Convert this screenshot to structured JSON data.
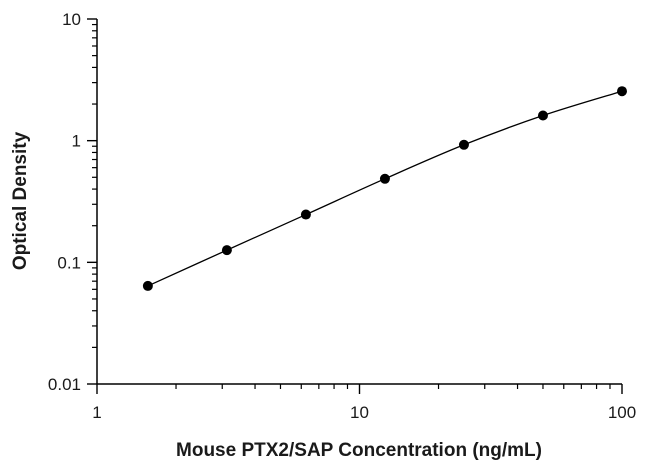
{
  "chart_data": {
    "type": "scatter",
    "xlabel": "Mouse PTX2/SAP Concentration (ng/mL)",
    "ylabel": "Optical Density",
    "x_scale": "log",
    "y_scale": "log",
    "xlim": [
      1,
      100
    ],
    "ylim": [
      0.01,
      10
    ],
    "x_ticks": [
      {
        "value": 1,
        "label": "1"
      },
      {
        "value": 10,
        "label": "10"
      },
      {
        "value": 100,
        "label": "100"
      }
    ],
    "y_ticks": [
      {
        "value": 0.01,
        "label": "0.01"
      },
      {
        "value": 0.1,
        "label": "0.1"
      },
      {
        "value": 1,
        "label": "1"
      },
      {
        "value": 10,
        "label": "10"
      }
    ],
    "grid": false,
    "series": [
      {
        "points": [
          {
            "x": 1.5625,
            "y": 0.064
          },
          {
            "x": 3.125,
            "y": 0.126
          },
          {
            "x": 6.25,
            "y": 0.247
          },
          {
            "x": 12.5,
            "y": 0.486
          },
          {
            "x": 25,
            "y": 0.925
          },
          {
            "x": 50,
            "y": 1.61
          },
          {
            "x": 100,
            "y": 2.55
          }
        ],
        "fit_curve": true,
        "color": "#000000"
      }
    ]
  }
}
